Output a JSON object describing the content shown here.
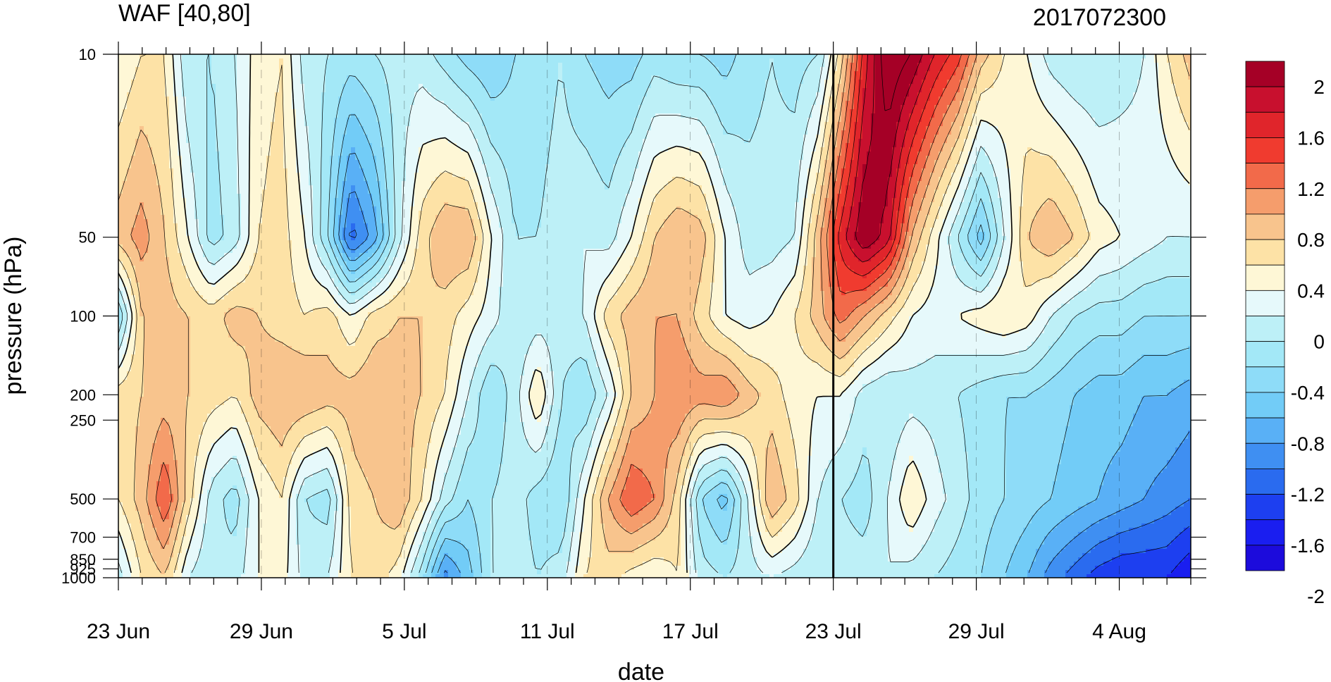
{
  "chart_data": {
    "type": "heatmap",
    "title_left": "WAF [40,80]",
    "title_right": "2017072300",
    "xlabel": "date",
    "ylabel": "pressure (hPa)",
    "x_ticks": [
      "23 Jun",
      "29 Jun",
      "5 Jul",
      "11 Jul",
      "17 Jul",
      "23 Jul",
      "29 Jul",
      "4 Aug"
    ],
    "y_ticks": [
      "10",
      "50",
      "100",
      "200",
      "250",
      "500",
      "700",
      "850",
      "925",
      "1000"
    ],
    "y_scale": "log",
    "x_range": [
      "2017-06-23",
      "2017-08-07"
    ],
    "y_range": [
      1000,
      10
    ],
    "marked_date": "23 Jul",
    "colorbar": {
      "labels": [
        "2",
        "1.6",
        "1.2",
        "0.8",
        "0.4",
        "0",
        "-0.4",
        "-0.8",
        "-1.2",
        "-1.6",
        "-2"
      ],
      "levels": [
        -2.2,
        -2.0,
        -1.8,
        -1.6,
        -1.4,
        -1.2,
        -1.0,
        -0.8,
        -0.6,
        -0.4,
        -0.2,
        0,
        0.2,
        0.4,
        0.6,
        0.8,
        1.0,
        1.2,
        1.4,
        1.6,
        1.8,
        2.0,
        2.2
      ],
      "colors": [
        "#a50026",
        "#c8102e",
        "#e0252b",
        "#f03b2f",
        "#f26a4a",
        "#f59d6c",
        "#f8c48d",
        "#fde2a6",
        "#fef7d6",
        "#e6f9fb",
        "#bdf0f7",
        "#a3e8f7",
        "#8edcf8",
        "#72ccf7",
        "#59b0f6",
        "#3f8ff2",
        "#2a6bef",
        "#1d3ff0",
        "#1a1ef0",
        "#1c0bdc"
      ]
    },
    "grid": false,
    "values": [
      {
        "pressure": 10,
        "row": [
          0.0,
          0.2,
          0.2,
          -0.4,
          -0.4,
          -0.2,
          0.1,
          0.2,
          -0.3,
          -0.4,
          -0.5,
          -0.4,
          -0.3,
          -0.3,
          -0.5,
          -0.7,
          -0.8,
          -0.6,
          -0.5,
          -0.4,
          -0.6,
          -0.7,
          -0.7,
          -0.5,
          -0.6,
          -0.6,
          -0.7,
          -0.5,
          -0.4,
          -0.5,
          -0.4,
          0.3,
          1.3,
          2.0,
          1.8,
          1.4,
          1.1,
          0.5,
          0.2,
          0.0,
          -0.3,
          -0.4,
          -0.4,
          -0.3,
          -0.2,
          0.2,
          0.5
        ]
      },
      {
        "pressure": 50,
        "row": [
          0.5,
          0.7,
          0.4,
          0.0,
          -0.5,
          -0.3,
          0.2,
          0.3,
          0.0,
          -0.6,
          -1.5,
          -1.1,
          -0.3,
          0.3,
          0.6,
          0.6,
          0.0,
          -0.4,
          -0.4,
          -0.3,
          -0.2,
          -0.3,
          0.0,
          0.4,
          0.6,
          0.5,
          0.0,
          -0.3,
          -0.3,
          -0.2,
          0.5,
          1.3,
          1.8,
          1.5,
          0.6,
          0.1,
          -0.4,
          -0.9,
          -0.2,
          0.4,
          0.6,
          0.4,
          0.1,
          0.0,
          -0.1,
          -0.2,
          -0.2
        ]
      },
      {
        "pressure": 100,
        "row": [
          -0.6,
          0.4,
          0.5,
          0.4,
          0.3,
          0.5,
          0.4,
          0.3,
          0.2,
          0.3,
          0.0,
          0.3,
          0.4,
          0.4,
          0.3,
          0.1,
          -0.1,
          -0.4,
          -0.3,
          -0.3,
          -0.2,
          0.3,
          0.5,
          0.6,
          0.6,
          0.3,
          0.0,
          -0.1,
          0.0,
          0.2,
          0.5,
          0.9,
          0.6,
          0.3,
          0.0,
          -0.1,
          0.0,
          0.1,
          0.2,
          0.1,
          -0.2,
          -0.4,
          -0.5,
          -0.5,
          -0.6,
          -0.6,
          -0.6
        ]
      },
      {
        "pressure": 200,
        "row": [
          0.3,
          0.4,
          0.5,
          0.4,
          0.3,
          0.2,
          0.5,
          0.6,
          0.6,
          0.5,
          0.5,
          0.6,
          0.5,
          0.4,
          0.2,
          -0.2,
          -0.6,
          -0.3,
          0.2,
          -0.4,
          -0.6,
          -0.2,
          0.4,
          0.6,
          0.8,
          0.7,
          0.8,
          0.5,
          0.3,
          0.1,
          0.0,
          0.0,
          -0.3,
          -0.4,
          -0.3,
          -0.3,
          -0.4,
          -0.5,
          -0.6,
          -0.6,
          -0.7,
          -0.8,
          -0.9,
          -0.9,
          -1.0,
          -1.0,
          -1.1
        ]
      },
      {
        "pressure": 500,
        "row": [
          0.2,
          0.5,
          1.0,
          0.3,
          -0.3,
          -0.5,
          0.0,
          0.2,
          -0.4,
          -0.5,
          0.3,
          0.4,
          0.6,
          0.2,
          -0.3,
          -0.6,
          -0.4,
          -0.3,
          -0.5,
          -0.6,
          0.0,
          0.6,
          1.0,
          0.8,
          0.3,
          -0.6,
          -0.9,
          -0.2,
          0.6,
          0.3,
          -0.2,
          -0.4,
          -0.5,
          -0.2,
          0.2,
          -0.1,
          -0.3,
          -0.5,
          -0.6,
          -0.7,
          -0.8,
          -0.9,
          -1.0,
          -1.1,
          -1.2,
          -1.3,
          -1.4
        ]
      },
      {
        "pressure": 1000,
        "row": [
          -0.3,
          0.2,
          0.4,
          -0.2,
          -0.4,
          -0.3,
          0.0,
          0.1,
          -0.3,
          -0.2,
          0.2,
          0.3,
          0.1,
          -0.5,
          -1.3,
          -0.9,
          -0.4,
          -0.3,
          -0.4,
          -0.3,
          0.2,
          0.3,
          0.1,
          0.0,
          0.2,
          -0.3,
          -0.4,
          -0.3,
          -0.2,
          -0.3,
          -0.4,
          -0.3,
          -0.3,
          -0.2,
          -0.3,
          -0.4,
          -0.5,
          -0.6,
          -0.8,
          -1.0,
          -1.3,
          -1.5,
          -1.7,
          -1.8,
          -1.8,
          -1.8,
          -2.0
        ]
      }
    ]
  }
}
